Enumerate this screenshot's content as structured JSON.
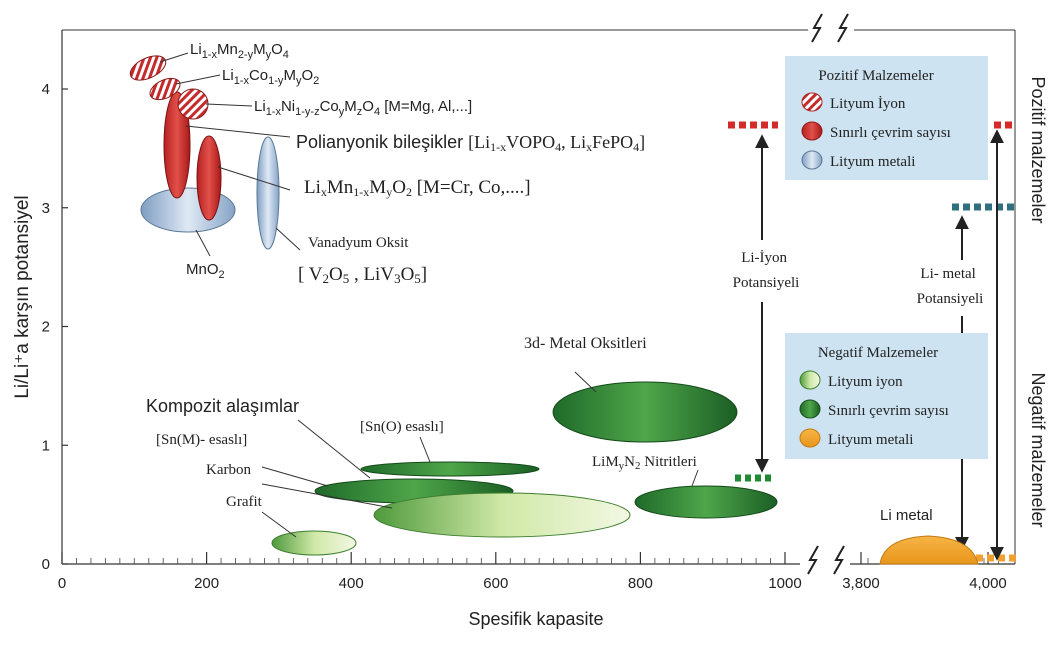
{
  "chart_data": {
    "type": "scatter",
    "xlabel": "Spesifik kapasite",
    "ylabel": "Li/Li⁺a karşın potansiyel",
    "ylim": [
      0,
      4.5
    ],
    "x_ticks_left": [
      "0",
      "200",
      "400",
      "600",
      "800",
      "1000"
    ],
    "x_ticks_right": [
      "3,800",
      "4,000"
    ],
    "y_ticks": [
      "0",
      "1",
      "2",
      "3",
      "4"
    ],
    "right_labels": {
      "top": "Pozitif malzemeler",
      "bottom": "Negatif malzemeler"
    },
    "positive_legend": {
      "title": "Pozitif Malzemeler",
      "items": [
        "Lityum İyon",
        "Sınırlı çevrim sayısı",
        "Lityum metali"
      ]
    },
    "negative_legend": {
      "title": "Negatif Malzemeler",
      "items": [
        "Lityum iyon",
        "Sınırlı çevrim sayısı",
        "Lityum metali"
      ]
    },
    "materials": {
      "limn": "Li1-xMn2-yMyO4",
      "lico": "Li1-xCo1-yMyO2",
      "lini": "Li1-xNi1-y-zCoyMzO4 [M=Mg, Al,...]",
      "poly": "Polianyonik bileşikler [Li1-xVOPO4, LixFePO4]",
      "limnm": "LixMn1-xMyO2 [M=Cr, Co,....]",
      "vanadyum": "Vanadyum Oksit",
      "vanadyum_formula": "[ V2O5 , LiV3O5]",
      "mno2": "MnO2",
      "oxides3d": "3d- Metal Oksitleri",
      "kompozit": "Kompozit alaşımlar",
      "sno": "[Sn(O) esaslı]",
      "snm": "[Sn(M)- esaslı]",
      "karbon": "Karbon",
      "grafit": "Grafit",
      "nitrides": "LiMyN2 Nitritleri",
      "limetal": "Li metal"
    },
    "potentials": {
      "li_ion": [
        "Li-İyon",
        "Potansiyeli"
      ],
      "li_metal": [
        "Li- metal",
        "Potansiyeli"
      ]
    }
  }
}
